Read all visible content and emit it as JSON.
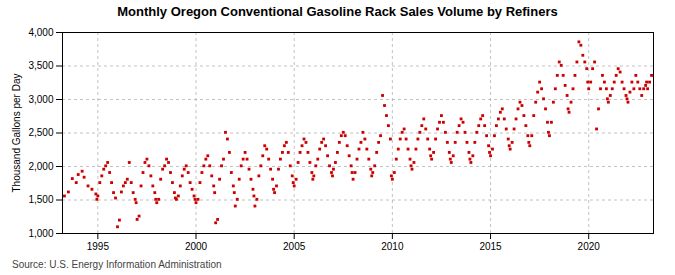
{
  "chart_data": {
    "type": "scatter",
    "title": "Monthly Oregon Conventional Gasoline Rack Sales Volume by Refiners",
    "ylabel": "Thousand Gallons per Day",
    "source": "Source: U.S. Energy Information Administration",
    "color": "#cc0000",
    "marker": "square",
    "grid": true,
    "xlim": [
      1993.2,
      2023.3
    ],
    "xticks": [
      1995,
      2000,
      2005,
      2010,
      2015,
      2020
    ],
    "ylim": [
      1000,
      4000
    ],
    "yticks": [
      {
        "value": 1000,
        "label": "1,000"
      },
      {
        "value": 1500,
        "label": "1,500"
      },
      {
        "value": 2000,
        "label": "2,000"
      },
      {
        "value": 2500,
        "label": "2,500"
      },
      {
        "value": 3000,
        "label": "3,000"
      },
      {
        "value": 3500,
        "label": "3,500"
      },
      {
        "value": 4000,
        "label": "4,000"
      }
    ],
    "x": [
      1993.3,
      1993.5,
      1993.7,
      1993.9,
      1994.0,
      1994.2,
      1994.3,
      1994.5,
      1994.7,
      1994.9,
      1994.95,
      1995.0,
      1995.1,
      1995.2,
      1995.3,
      1995.4,
      1995.5,
      1995.6,
      1995.7,
      1995.8,
      1995.9,
      1996.0,
      1996.1,
      1996.2,
      1996.3,
      1996.4,
      1996.5,
      1996.6,
      1996.7,
      1996.8,
      1996.9,
      1996.95,
      1997.0,
      1997.1,
      1997.2,
      1997.3,
      1997.4,
      1997.5,
      1997.6,
      1997.7,
      1997.8,
      1997.9,
      1997.95,
      1998.0,
      1998.1,
      1998.2,
      1998.3,
      1998.4,
      1998.5,
      1998.6,
      1998.7,
      1998.8,
      1998.9,
      1998.95,
      1999.0,
      1999.1,
      1999.2,
      1999.3,
      1999.4,
      1999.5,
      1999.6,
      1999.7,
      1999.8,
      1999.9,
      1999.95,
      2000.0,
      2000.1,
      2000.2,
      2000.3,
      2000.4,
      2000.5,
      2000.6,
      2000.7,
      2000.8,
      2000.9,
      2000.95,
      2001.0,
      2001.1,
      2001.2,
      2001.3,
      2001.4,
      2001.5,
      2001.6,
      2001.7,
      2001.8,
      2001.9,
      2001.95,
      2002.0,
      2002.1,
      2002.2,
      2002.3,
      2002.4,
      2002.5,
      2002.6,
      2002.7,
      2002.8,
      2002.9,
      2002.95,
      2003.0,
      2003.1,
      2003.2,
      2003.3,
      2003.4,
      2003.5,
      2003.6,
      2003.7,
      2003.8,
      2003.9,
      2003.95,
      2004.0,
      2004.1,
      2004.2,
      2004.3,
      2004.4,
      2004.5,
      2004.6,
      2004.7,
      2004.8,
      2004.9,
      2004.95,
      2005.0,
      2005.1,
      2005.2,
      2005.3,
      2005.4,
      2005.5,
      2005.6,
      2005.7,
      2005.8,
      2005.9,
      2005.95,
      2006.0,
      2006.1,
      2006.2,
      2006.3,
      2006.4,
      2006.5,
      2006.6,
      2006.7,
      2006.8,
      2006.9,
      2006.95,
      2007.0,
      2007.1,
      2007.2,
      2007.3,
      2007.4,
      2007.5,
      2007.6,
      2007.7,
      2007.8,
      2007.9,
      2007.95,
      2008.0,
      2008.1,
      2008.2,
      2008.3,
      2008.4,
      2008.5,
      2008.6,
      2008.7,
      2008.8,
      2008.9,
      2008.95,
      2009.0,
      2009.1,
      2009.2,
      2009.3,
      2009.4,
      2009.5,
      2009.6,
      2009.7,
      2009.8,
      2009.9,
      2009.95,
      2010.0,
      2010.1,
      2010.2,
      2010.3,
      2010.4,
      2010.5,
      2010.6,
      2010.7,
      2010.8,
      2010.9,
      2010.95,
      2011.0,
      2011.1,
      2011.2,
      2011.3,
      2011.4,
      2011.5,
      2011.6,
      2011.7,
      2011.8,
      2011.9,
      2011.95,
      2012.0,
      2012.1,
      2012.2,
      2012.3,
      2012.4,
      2012.5,
      2012.6,
      2012.7,
      2012.8,
      2012.9,
      2012.95,
      2013.0,
      2013.1,
      2013.2,
      2013.3,
      2013.4,
      2013.5,
      2013.6,
      2013.7,
      2013.8,
      2013.9,
      2013.95,
      2014.0,
      2014.1,
      2014.2,
      2014.3,
      2014.4,
      2014.5,
      2014.6,
      2014.7,
      2014.8,
      2014.9,
      2014.95,
      2015.0,
      2015.1,
      2015.2,
      2015.3,
      2015.4,
      2015.5,
      2015.6,
      2015.7,
      2015.8,
      2015.9,
      2015.95,
      2016.0,
      2016.1,
      2016.2,
      2016.3,
      2016.4,
      2016.5,
      2016.6,
      2016.7,
      2016.8,
      2016.9,
      2016.95,
      2017.0,
      2017.1,
      2017.2,
      2017.3,
      2017.4,
      2017.5,
      2017.6,
      2017.7,
      2017.8,
      2017.9,
      2017.95,
      2018.0,
      2018.1,
      2018.2,
      2018.3,
      2018.4,
      2018.5,
      2018.6,
      2018.7,
      2018.8,
      2018.9,
      2018.95,
      2019.0,
      2019.1,
      2019.2,
      2019.3,
      2019.4,
      2019.5,
      2019.6,
      2019.7,
      2019.8,
      2019.9,
      2019.95,
      2020.0,
      2020.1,
      2020.2,
      2020.3,
      2020.4,
      2020.5,
      2020.6,
      2020.7,
      2020.8,
      2020.9,
      2020.95,
      2021.0,
      2021.1,
      2021.2,
      2021.3,
      2021.4,
      2021.5,
      2021.6,
      2021.7,
      2021.8,
      2021.9,
      2021.95,
      2022.0,
      2022.1,
      2022.2,
      2022.3,
      2022.4,
      2022.5,
      2022.6,
      2022.7,
      2022.8,
      2022.9,
      2022.95,
      2023.0,
      2023.1,
      2023.2
    ],
    "values": [
      1560,
      1620,
      1820,
      1760,
      1880,
      1930,
      1840,
      1710,
      1660,
      1590,
      1510,
      1560,
      1760,
      1860,
      1960,
      2010,
      2060,
      1910,
      1760,
      1610,
      1530,
      1100,
      1200,
      1620,
      1710,
      1760,
      1810,
      2060,
      1760,
      1610,
      1510,
      1460,
      1210,
      1260,
      1710,
      1910,
      2060,
      2110,
      2010,
      1860,
      1710,
      1610,
      1510,
      1460,
      1510,
      1810,
      1960,
      2010,
      2110,
      2060,
      1910,
      1760,
      1610,
      1530,
      1510,
      1560,
      1710,
      1860,
      1960,
      2010,
      1910,
      1760,
      1660,
      1560,
      1510,
      1460,
      1510,
      1760,
      1910,
      2010,
      2110,
      2160,
      2010,
      1860,
      1710,
      1610,
      1160,
      1210,
      1810,
      2010,
      2110,
      2510,
      2410,
      2210,
      1910,
      1710,
      1610,
      1410,
      1510,
      1810,
      2010,
      2110,
      2210,
      2110,
      1960,
      1810,
      1660,
      1560,
      1410,
      1510,
      1860,
      2010,
      2160,
      2310,
      2260,
      2110,
      1960,
      1810,
      1660,
      1610,
      1710,
      1960,
      2110,
      2210,
      2310,
      2360,
      2210,
      2010,
      1860,
      1760,
      1710,
      1810,
      2060,
      2210,
      2310,
      2410,
      2360,
      2210,
      2060,
      1910,
      1810,
      1860,
      2010,
      2110,
      2260,
      2360,
      2410,
      2310,
      2160,
      2010,
      1910,
      1860,
      1960,
      2060,
      2210,
      2360,
      2460,
      2510,
      2460,
      2310,
      2160,
      2010,
      1910,
      1810,
      1910,
      2110,
      2260,
      2360,
      2510,
      2410,
      2260,
      2110,
      1960,
      1860,
      1910,
      2010,
      2210,
      2360,
      2460,
      3060,
      2910,
      2760,
      2610,
      2410,
      1860,
      1810,
      1910,
      2110,
      2260,
      2410,
      2510,
      2560,
      2410,
      2260,
      2110,
      2010,
      1960,
      2060,
      2260,
      2410,
      2510,
      2610,
      2710,
      2560,
      2410,
      2260,
      2160,
      2110,
      2210,
      2410,
      2560,
      2660,
      2760,
      2660,
      2510,
      2360,
      2210,
      2110,
      2060,
      2160,
      2360,
      2510,
      2610,
      2710,
      2660,
      2510,
      2360,
      2210,
      2110,
      2060,
      2160,
      2360,
      2510,
      2610,
      2710,
      2760,
      2610,
      2460,
      2310,
      2210,
      2160,
      2260,
      2460,
      2610,
      2710,
      2810,
      2860,
      2710,
      2560,
      2410,
      2310,
      2260,
      2360,
      2560,
      2710,
      2860,
      2960,
      2910,
      2760,
      2610,
      2460,
      2360,
      2310,
      2460,
      2760,
      2960,
      3110,
      3260,
      3160,
      3010,
      2860,
      2660,
      2510,
      2460,
      2660,
      2960,
      3160,
      3360,
      3560,
      3510,
      3360,
      3210,
      3060,
      2860,
      2810,
      2960,
      3160,
      3360,
      3560,
      3860,
      3810,
      3660,
      3560,
      3460,
      3260,
      3160,
      3260,
      3460,
      3560,
      2560,
      2860,
      3160,
      3360,
      3260,
      3160,
      3010,
      2960,
      3060,
      3160,
      3260,
      3360,
      3460,
      3410,
      3260,
      3160,
      3060,
      3010,
      2960,
      3110,
      3260,
      3160,
      3360,
      3260,
      3160,
      3060,
      3160,
      3210,
      3260,
      3160,
      3260,
      3360
    ]
  }
}
